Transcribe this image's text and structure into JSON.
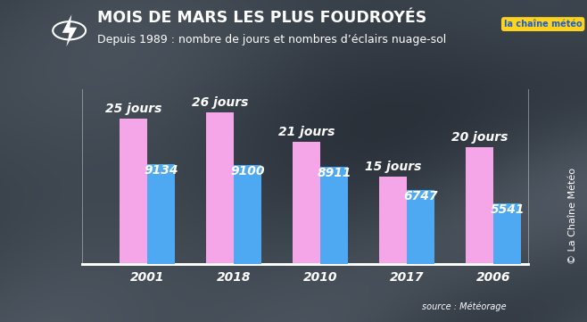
{
  "chart_data": {
    "type": "bar",
    "title": "MOIS DE MARS LES PLUS FOUDROYÉS",
    "subtitle": "Depuis 1989 : nombre de jours et nombres d’éclairs nuage-sol",
    "categories": [
      "2001",
      "2018",
      "2010",
      "2017",
      "2006"
    ],
    "series": [
      {
        "color": "#f4a6e8",
        "values": [
          25,
          26,
          21,
          15,
          20
        ],
        "value_labels": [
          "25 jours",
          "26 jours",
          "21 jours",
          "15 jours",
          "20 jours"
        ]
      },
      {
        "color": "#4ea8f2",
        "values": [
          9134,
          9100,
          8911,
          6747,
          5541
        ],
        "axis": "y2"
      }
    ],
    "ylim": [
      0,
      30
    ],
    "y2lim": [
      0,
      16000
    ],
    "data_labels": true,
    "tick_labels": "x",
    "grid": false,
    "annotations": [
      "source : Météorage",
      "© La Chaîne Météo",
      "la chaîne météo"
    ]
  }
}
